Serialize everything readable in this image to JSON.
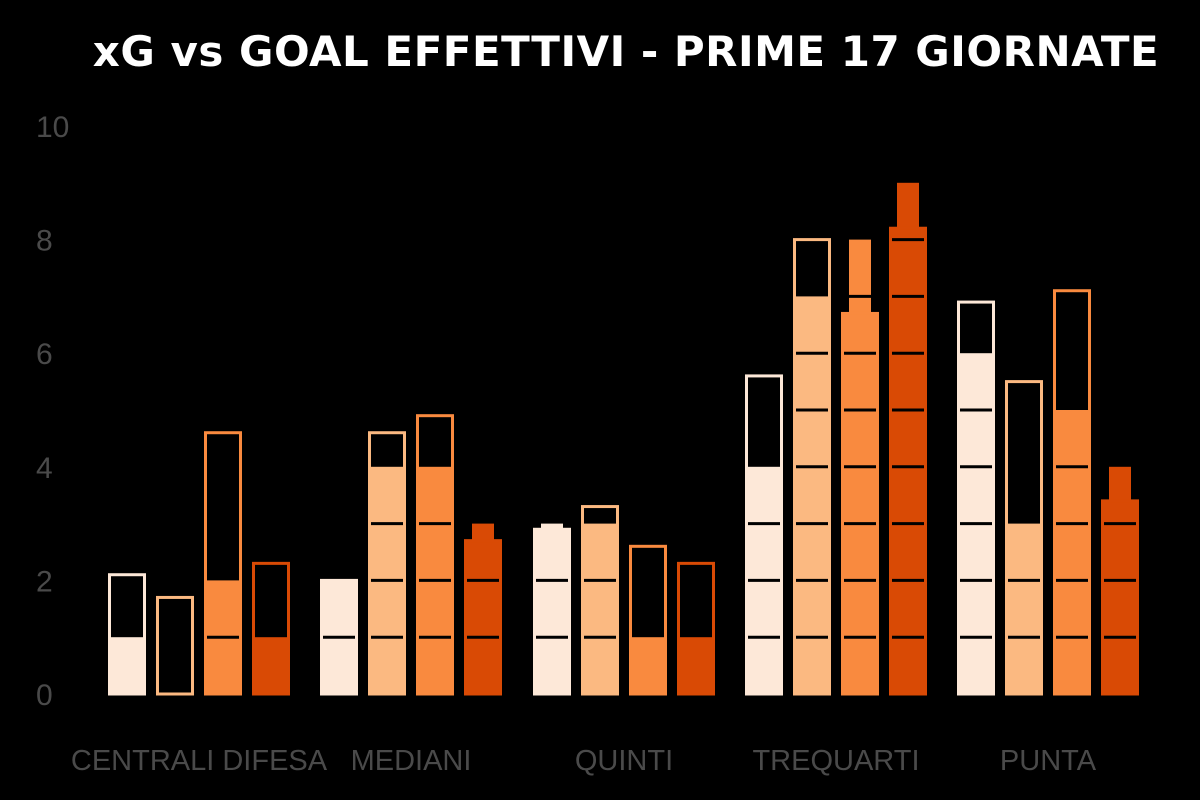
{
  "chart_data": {
    "type": "bar",
    "title": "xG vs GOAL EFFETTIVI - PRIME 17 GIORNATE",
    "xlabel": "",
    "ylabel": "",
    "ylim": [
      0,
      10
    ],
    "yticks": [
      "0",
      "2",
      "4",
      "6",
      "8",
      "10"
    ],
    "grid": false,
    "legend": "none",
    "categories": [
      "CENTRALI DIFESA",
      "MEDIANI",
      "QUINTI",
      "TREQUARTI",
      "PUNTA"
    ],
    "series": [
      {
        "color": "#fde8d8",
        "goals": [
          1,
          2,
          3,
          4,
          6
        ],
        "xg": [
          2.1,
          2.0,
          2.9,
          5.6,
          6.9
        ]
      },
      {
        "color": "#fbb981",
        "goals": [
          0,
          4,
          3,
          7,
          3
        ],
        "xg": [
          1.7,
          4.6,
          3.3,
          8.0,
          5.5
        ]
      },
      {
        "color": "#f98a3f",
        "goals": [
          2,
          4,
          1,
          8,
          5
        ],
        "xg": [
          4.6,
          4.9,
          2.6,
          6.7,
          7.1
        ]
      },
      {
        "color": "#d94a05",
        "goals": [
          1,
          3,
          1,
          9,
          4
        ],
        "xg": [
          2.3,
          2.7,
          2.3,
          8.2,
          3.4
        ]
      }
    ],
    "colors": {
      "background": "#000000",
      "text": "#ffffff",
      "axis_text": "#4a4a4a",
      "unit_separator": "#000000"
    }
  }
}
